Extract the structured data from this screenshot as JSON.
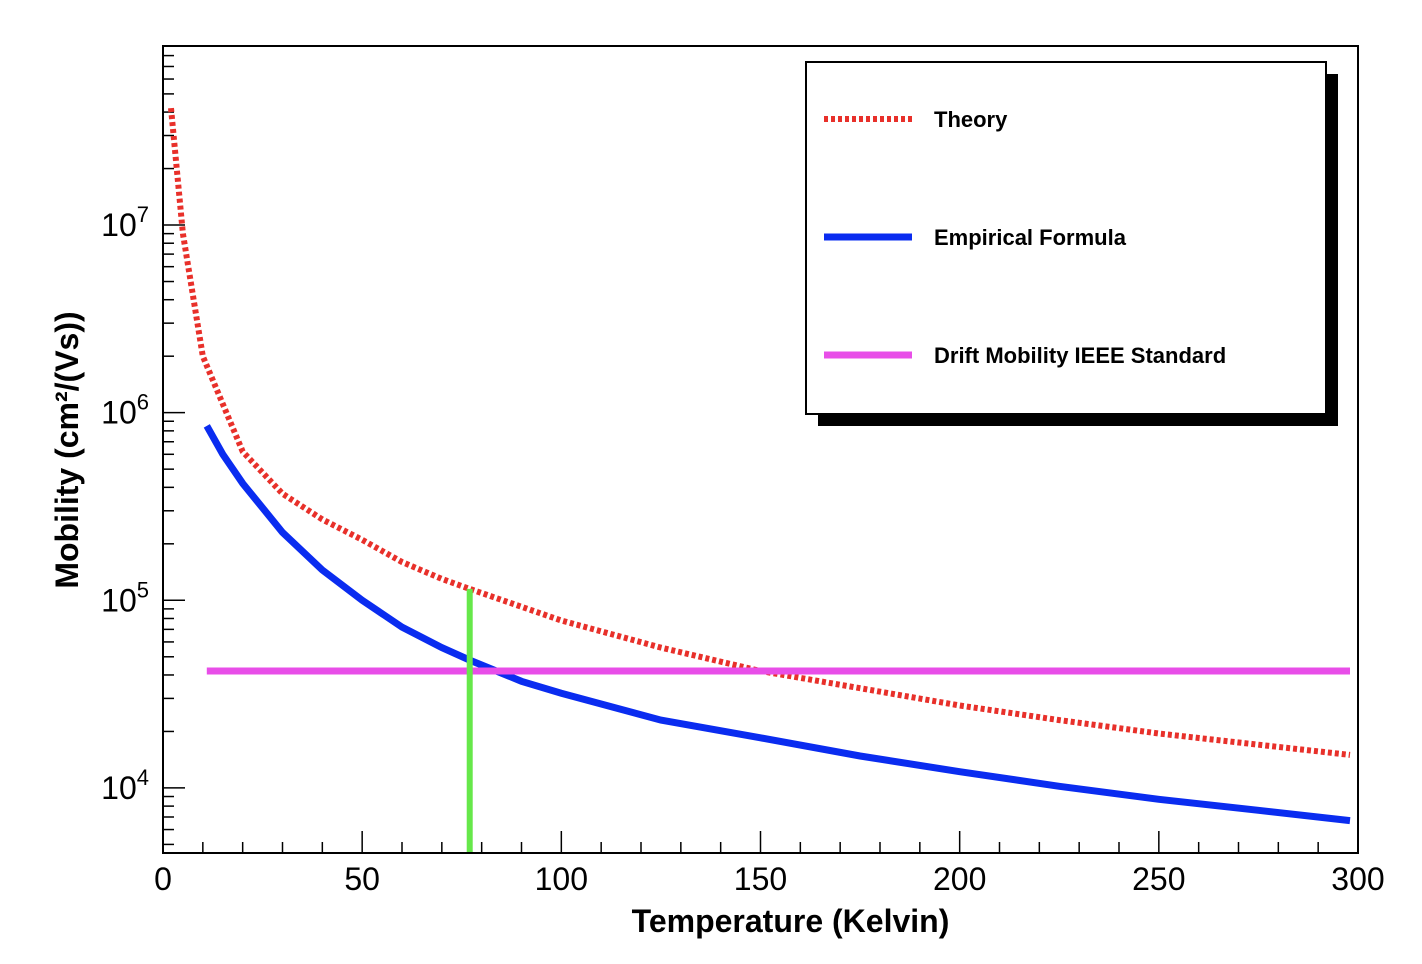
{
  "chart_data": {
    "type": "line",
    "title": "",
    "xlabel": "Temperature (Kelvin)",
    "ylabel": "Mobility (cm²/(Vs))",
    "xlim": [
      0,
      300
    ],
    "ylim": [
      4500,
      90000000
    ],
    "yscale": "log",
    "grid": false,
    "legend_position": "top-right",
    "x_ticks": [
      0,
      50,
      100,
      150,
      200,
      250,
      300
    ],
    "x_tick_labels": [
      "0",
      "50",
      "100",
      "150",
      "200",
      "250",
      "300"
    ],
    "y_ticks": [
      10000,
      100000,
      1000000,
      10000000
    ],
    "y_tick_labels": [
      {
        "base": "10",
        "exp": "4"
      },
      {
        "base": "10",
        "exp": "5"
      },
      {
        "base": "10",
        "exp": "6"
      },
      {
        "base": "10",
        "exp": "7"
      }
    ],
    "series": [
      {
        "name": "Theory",
        "color": "#e8302a",
        "style": "dotted",
        "points": [
          [
            2,
            42000000
          ],
          [
            5,
            9000000
          ],
          [
            10,
            2000000
          ],
          [
            20,
            620000
          ],
          [
            30,
            370000
          ],
          [
            40,
            270000
          ],
          [
            50,
            210000
          ],
          [
            60,
            160000
          ],
          [
            70,
            130000
          ],
          [
            77,
            115000
          ],
          [
            100,
            78000
          ],
          [
            125,
            56000
          ],
          [
            150,
            42000
          ],
          [
            175,
            34000
          ],
          [
            200,
            27500
          ],
          [
            225,
            23000
          ],
          [
            250,
            19500
          ],
          [
            275,
            17000
          ],
          [
            298,
            15000
          ]
        ]
      },
      {
        "name": "Empirical Formula",
        "color": "#0a2cf0",
        "style": "solid",
        "points": [
          [
            11,
            850000
          ],
          [
            15,
            600000
          ],
          [
            20,
            420000
          ],
          [
            30,
            230000
          ],
          [
            40,
            145000
          ],
          [
            50,
            100000
          ],
          [
            60,
            72000
          ],
          [
            70,
            56000
          ],
          [
            77,
            48000
          ],
          [
            90,
            37000
          ],
          [
            100,
            32000
          ],
          [
            125,
            23000
          ],
          [
            150,
            18500
          ],
          [
            175,
            14800
          ],
          [
            200,
            12200
          ],
          [
            225,
            10200
          ],
          [
            250,
            8700
          ],
          [
            275,
            7600
          ],
          [
            298,
            6700
          ]
        ]
      },
      {
        "name": "Drift Mobility IEEE Standard",
        "color": "#e84ee8",
        "style": "solid",
        "points": [
          [
            11,
            42000
          ],
          [
            298,
            42000
          ]
        ]
      }
    ],
    "marker_line": {
      "x": 77,
      "color": "#66e84a",
      "y_from": 4500,
      "y_to": 115000
    }
  }
}
